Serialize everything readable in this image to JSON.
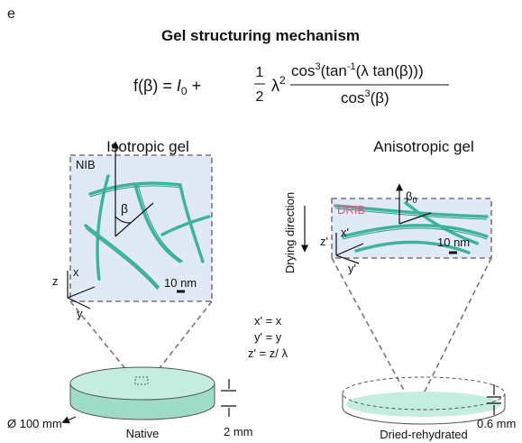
{
  "panel_label": "e",
  "title": "Gel structuring mechanism",
  "formula": {
    "lhs": "f(β) = ",
    "i": "I",
    "i_sub": "0",
    "plus": " + ",
    "frac_num": "1",
    "frac_den": "2",
    "lambda": "λ",
    "lambda_exp": "2",
    "num": [
      "cos",
      "3",
      "(tan",
      "-1",
      "(λ tan(β)))"
    ],
    "den": [
      "cos",
      "3",
      "(β)"
    ]
  },
  "isotropic": {
    "title": "Isotropic gel",
    "box_label": "NIB",
    "angle": "β",
    "axes": [
      "z",
      "x",
      "y"
    ],
    "scale": "10 nm"
  },
  "anisotropic": {
    "title": "Anisotropic gel",
    "box_label": "DRIB",
    "angle": "β",
    "angle_sub": "0",
    "axes": [
      "z'",
      "x'",
      "y'"
    ],
    "scale": "10 nm",
    "direction": "Drying direction"
  },
  "transform": [
    "x' = x",
    "y' = y",
    "z' = z/ λ"
  ],
  "dishes": {
    "diameter": "Ø 100 mm",
    "native": "Native",
    "native_height": "2 mm",
    "dried": "Dried-rehydrated",
    "dried_height": "0.6 mm"
  }
}
